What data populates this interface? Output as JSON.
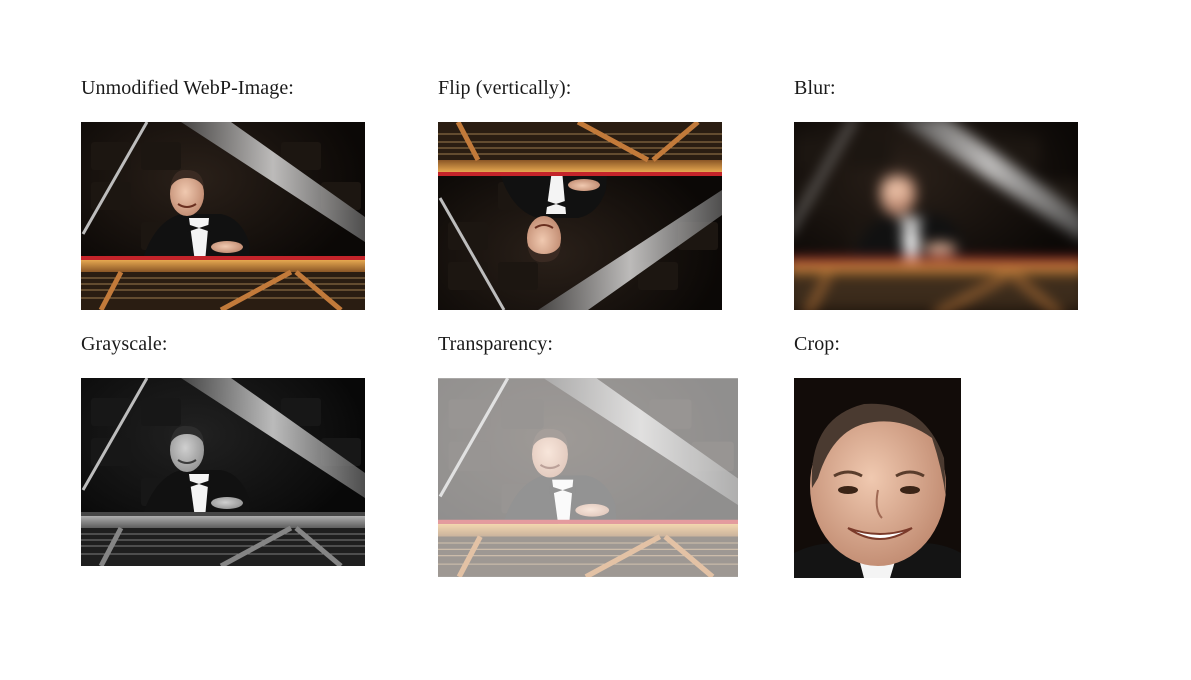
{
  "panels": [
    {
      "caption": "Unmodified WebP-Image:",
      "effect": "none"
    },
    {
      "caption": "Flip (vertically):",
      "effect": "flip-vertical"
    },
    {
      "caption": "Blur:",
      "effect": "blur"
    },
    {
      "caption": "Grayscale:",
      "effect": "grayscale"
    },
    {
      "caption": "Transparency:",
      "effect": "transparency"
    },
    {
      "caption": "Crop:",
      "effect": "crop"
    }
  ],
  "colors": {
    "page_background": "#ffffff",
    "caption_text": "#1a1a1a",
    "photo_background": "#0d0a08",
    "piano_wood": "#c8893d",
    "piano_red": "#c4242a",
    "skin": "#e2b49a"
  },
  "icons": {
    "photo": "pianist-photo-icon"
  }
}
